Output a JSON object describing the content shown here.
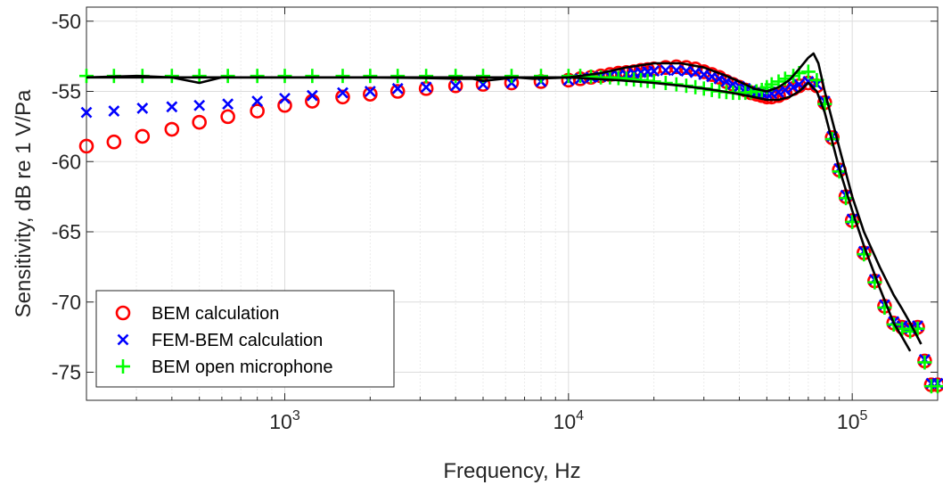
{
  "chart_data": {
    "type": "scatter",
    "xlabel": "Frequency, Hz",
    "ylabel": "Sensitivity, dB re 1 V/Pa",
    "xscale": "log",
    "xlim": [
      200,
      200000
    ],
    "ylim": [
      -77,
      -49
    ],
    "x_ticks": [
      {
        "value": 1000,
        "base": "10",
        "exp": "3"
      },
      {
        "value": 10000,
        "base": "10",
        "exp": "4"
      },
      {
        "value": 100000,
        "base": "10",
        "exp": "5"
      }
    ],
    "y_ticks": [
      -75,
      -70,
      -65,
      -60,
      -55,
      -50
    ],
    "grid": true,
    "legend_position": "bottom-left",
    "series": [
      {
        "name": "BEM calculation",
        "marker": "circle",
        "color": "#ff0000",
        "x": [
          200,
          250,
          315,
          400,
          500,
          630,
          800,
          1000,
          1250,
          1600,
          2000,
          2500,
          3150,
          4000,
          5000,
          6300,
          8000,
          10000,
          11000,
          12000,
          13000,
          14000,
          15000,
          16000,
          17000,
          18000,
          19000,
          20000,
          22000,
          24000,
          26000,
          28000,
          30000,
          32000,
          34000,
          36000,
          38000,
          40000,
          42000,
          44000,
          46000,
          48000,
          50000,
          52000,
          55000,
          58000,
          62000,
          65000,
          70000,
          75000,
          80000,
          85000,
          90000,
          95000,
          100000,
          110000,
          120000,
          130000,
          140000,
          150000,
          160000,
          170000,
          180000,
          190000,
          200000
        ],
        "y": [
          -58.9,
          -58.6,
          -58.2,
          -57.7,
          -57.2,
          -56.8,
          -56.4,
          -56.0,
          -55.7,
          -55.4,
          -55.2,
          -55.0,
          -54.8,
          -54.6,
          -54.5,
          -54.4,
          -54.3,
          -54.2,
          -54.1,
          -54.0,
          -53.9,
          -53.8,
          -53.7,
          -53.65,
          -53.6,
          -53.5,
          -53.45,
          -53.4,
          -53.3,
          -53.25,
          -53.3,
          -53.4,
          -53.6,
          -53.8,
          -54.0,
          -54.3,
          -54.5,
          -54.7,
          -54.9,
          -55.1,
          -55.2,
          -55.3,
          -55.4,
          -55.4,
          -55.3,
          -55.1,
          -54.8,
          -54.6,
          -54.4,
          -54.6,
          -55.8,
          -58.3,
          -60.6,
          -62.5,
          -64.2,
          -66.5,
          -68.5,
          -70.3,
          -71.5,
          -71.8,
          -72.0,
          -71.8,
          -74.2,
          -75.9,
          -75.9
        ]
      },
      {
        "name": "FEM-BEM calculation",
        "marker": "x",
        "color": "#0000ff",
        "x": [
          200,
          250,
          315,
          400,
          500,
          630,
          800,
          1000,
          1250,
          1600,
          2000,
          2500,
          3150,
          4000,
          5000,
          6300,
          8000,
          10000,
          11000,
          12000,
          13000,
          14000,
          15000,
          16000,
          17000,
          18000,
          19000,
          20000,
          22000,
          24000,
          26000,
          28000,
          30000,
          32000,
          34000,
          36000,
          38000,
          40000,
          42000,
          44000,
          46000,
          48000,
          50000,
          52000,
          55000,
          58000,
          62000,
          65000,
          70000,
          75000,
          80000,
          85000,
          90000,
          95000,
          100000,
          110000,
          120000,
          130000,
          140000,
          150000,
          160000,
          170000,
          180000,
          190000,
          200000
        ],
        "y": [
          -56.5,
          -56.4,
          -56.2,
          -56.1,
          -56.0,
          -55.9,
          -55.7,
          -55.5,
          -55.3,
          -55.1,
          -55.0,
          -54.8,
          -54.7,
          -54.6,
          -54.5,
          -54.4,
          -54.3,
          -54.2,
          -54.1,
          -54.0,
          -53.95,
          -53.9,
          -53.85,
          -53.8,
          -53.7,
          -53.65,
          -53.6,
          -53.55,
          -53.5,
          -53.5,
          -53.55,
          -53.65,
          -53.8,
          -53.95,
          -54.1,
          -54.3,
          -54.5,
          -54.65,
          -54.8,
          -54.95,
          -55.05,
          -55.1,
          -55.15,
          -55.15,
          -55.05,
          -54.9,
          -54.7,
          -54.5,
          -54.3,
          -54.5,
          -55.7,
          -58.2,
          -60.5,
          -62.4,
          -64.1,
          -66.4,
          -68.4,
          -70.2,
          -71.4,
          -71.7,
          -71.9,
          -71.7,
          -74.1,
          -75.8,
          -75.8
        ]
      },
      {
        "name": "BEM open microphone",
        "marker": "plus",
        "color": "#00ff00",
        "x": [
          200,
          250,
          315,
          400,
          500,
          630,
          800,
          1000,
          1250,
          1600,
          2000,
          2500,
          3150,
          4000,
          5000,
          6300,
          8000,
          10000,
          11000,
          12000,
          13000,
          14000,
          15000,
          16000,
          17000,
          18000,
          19000,
          20000,
          22000,
          24000,
          26000,
          28000,
          30000,
          32000,
          34000,
          36000,
          38000,
          40000,
          42000,
          44000,
          46000,
          48000,
          50000,
          52000,
          55000,
          58000,
          62000,
          65000,
          70000,
          75000,
          80000,
          85000,
          90000,
          95000,
          100000,
          110000,
          120000,
          130000,
          140000,
          150000,
          160000,
          170000,
          180000,
          190000,
          200000
        ],
        "y": [
          -53.9,
          -53.9,
          -53.9,
          -53.9,
          -53.9,
          -53.9,
          -53.9,
          -53.9,
          -53.9,
          -53.9,
          -53.9,
          -53.9,
          -53.9,
          -53.9,
          -53.9,
          -53.9,
          -53.9,
          -53.9,
          -53.9,
          -53.95,
          -54.0,
          -54.0,
          -54.05,
          -54.1,
          -54.15,
          -54.2,
          -54.25,
          -54.3,
          -54.4,
          -54.5,
          -54.6,
          -54.7,
          -54.8,
          -54.9,
          -55.0,
          -55.05,
          -55.1,
          -55.1,
          -55.1,
          -55.05,
          -55.0,
          -54.9,
          -54.7,
          -54.5,
          -54.3,
          -54.1,
          -53.9,
          -53.7,
          -53.6,
          -54.2,
          -55.9,
          -58.4,
          -60.7,
          -62.6,
          -64.3,
          -66.6,
          -68.6,
          -70.4,
          -71.6,
          -71.9,
          -72.1,
          -71.9,
          -74.3,
          -76.0,
          -76.0
        ]
      },
      {
        "name": "",
        "marker": "none",
        "color": "#000000",
        "x": [
          200,
          500,
          1000,
          2000,
          3000,
          4000,
          4600,
          5000,
          5600,
          6500,
          7500,
          9000,
          10000,
          12000,
          15000,
          20000,
          25000,
          30000,
          35000,
          40000,
          45000,
          50000,
          55000,
          60000,
          65000,
          70000,
          75000,
          80000,
          90000,
          100000,
          110000,
          125000,
          140000,
          150000,
          160000
        ],
        "y": [
          -54.0,
          -54.0,
          -54.0,
          -54.0,
          -54.05,
          -54.1,
          -54.1,
          -54.25,
          -54.15,
          -54.0,
          -54.1,
          -54.05,
          -54.0,
          -54.1,
          -54.2,
          -54.4,
          -54.6,
          -54.8,
          -55.0,
          -55.2,
          -55.4,
          -55.6,
          -55.6,
          -55.4,
          -55.0,
          -54.4,
          -55.0,
          -56.5,
          -60.5,
          -63.5,
          -66.0,
          -69.0,
          -71.5,
          -72.5,
          -73.5
        ]
      },
      {
        "name": "",
        "marker": "none",
        "color": "#000000",
        "x": [
          200,
          300,
          400,
          500,
          600,
          1000,
          2000,
          5000,
          10000,
          13000,
          16000,
          20000,
          25000,
          30000,
          35000,
          40000,
          45000,
          50000,
          55000,
          60000,
          65000,
          70000,
          73000,
          76000,
          80000,
          90000,
          100000,
          110000,
          125000,
          140000,
          150000,
          160000,
          175000
        ],
        "y": [
          -54.0,
          -53.9,
          -54.0,
          -54.4,
          -54.0,
          -54.0,
          -54.0,
          -54.0,
          -54.0,
          -53.7,
          -53.3,
          -53.0,
          -53.0,
          -53.3,
          -53.8,
          -54.3,
          -54.8,
          -55.0,
          -54.7,
          -54.2,
          -53.4,
          -52.6,
          -52.3,
          -53.0,
          -55.0,
          -59.0,
          -62.5,
          -65.0,
          -67.5,
          -69.5,
          -70.5,
          -71.5,
          -73.0
        ]
      }
    ]
  }
}
